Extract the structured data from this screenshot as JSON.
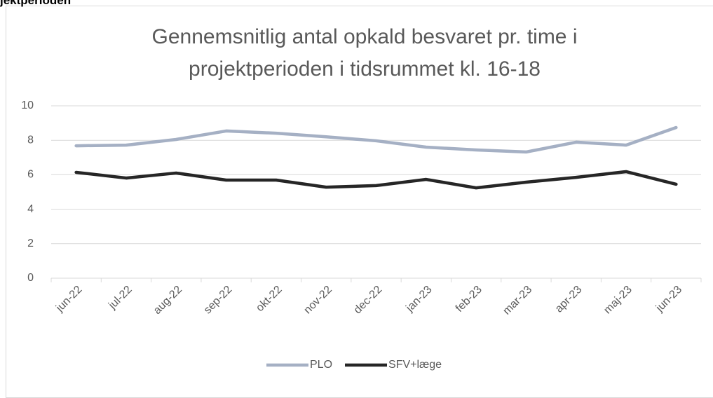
{
  "page_heading": "jektperioden",
  "chart_data": {
    "type": "line",
    "title": "Gennemsnitlig antal opkald besvaret pr. time i projektperioden i tidsrummet kl. 16-18",
    "categories": [
      "jun-22",
      "jul-22",
      "aug-22",
      "sep-22",
      "okt-22",
      "nov-22",
      "dec-22",
      "jan-23",
      "feb-23",
      "mar-23",
      "apr-23",
      "maj-23",
      "jun-23"
    ],
    "series": [
      {
        "name": "PLO",
        "color": "#a5b0c4",
        "values": [
          7.68,
          7.72,
          8.05,
          8.54,
          8.41,
          8.2,
          7.97,
          7.6,
          7.44,
          7.32,
          7.89,
          7.72,
          8.74
        ]
      },
      {
        "name": "SFV+læge",
        "color": "#262626",
        "values": [
          6.14,
          5.81,
          6.1,
          5.69,
          5.69,
          5.28,
          5.37,
          5.73,
          5.24,
          5.57,
          5.85,
          6.18,
          5.45
        ]
      }
    ],
    "ylim": [
      0,
      10
    ],
    "yticks": [
      0,
      2,
      4,
      6,
      8,
      10
    ],
    "grid": true,
    "legend": "bottom"
  }
}
